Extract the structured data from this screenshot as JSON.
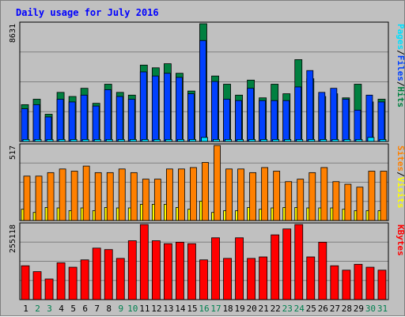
{
  "chart_data": {
    "type": "bar",
    "title": "Daily usage for July 2016",
    "categories": [
      "1",
      "2",
      "3",
      "4",
      "5",
      "6",
      "7",
      "8",
      "9",
      "10",
      "11",
      "12",
      "13",
      "14",
      "15",
      "16",
      "17",
      "18",
      "19",
      "20",
      "21",
      "22",
      "23",
      "24",
      "25",
      "26",
      "27",
      "28",
      "29",
      "30",
      "31"
    ],
    "weekend_categories": [
      "2",
      "3",
      "9",
      "10",
      "16",
      "17",
      "23",
      "24",
      "30",
      "31"
    ],
    "panels": [
      {
        "id": "hits",
        "ymax": 8631,
        "ymax_label": "8631",
        "side_label": {
          "parts": [
            "Pages",
            "Files",
            "Hits"
          ],
          "separator": "/"
        },
        "series": [
          {
            "name": "Hits",
            "color": "#008040",
            "values": [
              2700,
              3100,
              2000,
              3600,
              3300,
              3900,
              2800,
              4200,
              3600,
              3400,
              5600,
              5400,
              5700,
              5000,
              3700,
              8631,
              4800,
              4200,
              3400,
              4500,
              3200,
              4200,
              3500,
              6000,
              4600,
              3300,
              3500,
              3200,
              4200,
              2900,
              3100
            ]
          },
          {
            "name": "Files",
            "color": "#0040ff",
            "values": [
              2400,
              2700,
              1800,
              3100,
              2900,
              3400,
              2600,
              3800,
              3300,
              3100,
              5100,
              4800,
              5000,
              4700,
              3500,
              7400,
              4400,
              3100,
              3000,
              3900,
              3000,
              3000,
              3000,
              4000,
              5200,
              3600,
              3900,
              3100,
              2300,
              3400,
              2900
            ]
          },
          {
            "name": "Pages",
            "color": "#00e0ff",
            "values": [
              150,
              150,
              150,
              150,
              150,
              150,
              150,
              150,
              150,
              150,
              150,
              150,
              150,
              150,
              150,
              300,
              150,
              150,
              150,
              150,
              150,
              150,
              150,
              150,
              150,
              150,
              150,
              150,
              150,
              300,
              150
            ]
          }
        ]
      },
      {
        "id": "visits",
        "ymax": 517,
        "ymax_label": "517",
        "side_label": {
          "parts": [
            "Sites",
            "Visits"
          ],
          "separator": "/"
        },
        "series": [
          {
            "name": "Visits",
            "color": "#ffff00",
            "values": [
              78,
              56,
              90,
              87,
              68,
              87,
              68,
              90,
              87,
              87,
              112,
              112,
              112,
              90,
              78,
              134,
              56,
              68,
              68,
              90,
              78,
              87,
              90,
              90,
              87,
              87,
              87,
              78,
              68,
              68,
              68
            ]
          },
          {
            "name": "Sites",
            "color": "#ff8000",
            "values": [
              306,
              306,
              330,
              355,
              340,
              375,
              330,
              330,
              355,
              330,
              285,
              285,
              355,
              355,
              365,
              400,
              517,
              355,
              355,
              330,
              365,
              340,
              268,
              285,
              330,
              365,
              268,
              250,
              230,
              340,
              340
            ]
          }
        ]
      },
      {
        "id": "kbytes",
        "ymax": 255118,
        "ymax_label": "255118",
        "side_label": {
          "parts": [
            "KBytes"
          ],
          "separator": "/"
        },
        "series": [
          {
            "name": "KBytes",
            "color": "#ff0000",
            "values": [
              115000,
              95000,
              70000,
              125000,
              110000,
              135000,
              175000,
              170000,
              140000,
              200000,
              255118,
              200000,
              190000,
              195000,
              190000,
              135000,
              210000,
              140000,
              210000,
              140000,
              145000,
              220000,
              240000,
              255118,
              145000,
              195000,
              115000,
              100000,
              120000,
              110000,
              100000
            ]
          }
        ]
      }
    ],
    "colors": {
      "Hits": "#008040",
      "Files": "#0040ff",
      "Pages": "#00e0ff",
      "Visits": "#ffff00",
      "Sites": "#ff8000",
      "KBytes": "#ff0000",
      "weekday_label": "#000000",
      "weekend_label": "#00804f",
      "panel_bg": "#c0c0c0",
      "gridline": "#808080"
    }
  }
}
